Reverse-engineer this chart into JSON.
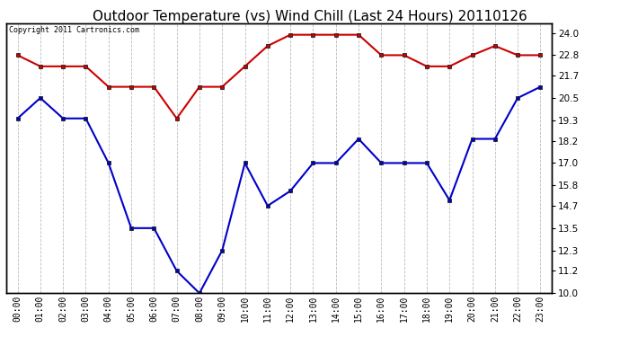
{
  "title": "Outdoor Temperature (vs) Wind Chill (Last 24 Hours) 20110126",
  "copyright_text": "Copyright 2011 Cartronics.com",
  "hours": [
    "00:00",
    "01:00",
    "02:00",
    "03:00",
    "04:00",
    "05:00",
    "06:00",
    "07:00",
    "08:00",
    "09:00",
    "10:00",
    "11:00",
    "12:00",
    "13:00",
    "14:00",
    "15:00",
    "16:00",
    "17:00",
    "18:00",
    "19:00",
    "20:00",
    "21:00",
    "22:00",
    "23:00"
  ],
  "temp": [
    22.8,
    22.2,
    22.2,
    22.2,
    21.1,
    21.1,
    21.1,
    19.4,
    21.1,
    21.1,
    22.2,
    23.3,
    23.9,
    23.9,
    23.9,
    23.9,
    22.8,
    22.8,
    22.2,
    22.2,
    22.8,
    23.3,
    22.8,
    22.8
  ],
  "wind_chill": [
    19.4,
    20.5,
    19.4,
    19.4,
    17.0,
    13.5,
    13.5,
    11.2,
    10.0,
    12.3,
    17.0,
    14.7,
    15.5,
    17.0,
    17.0,
    18.3,
    17.0,
    17.0,
    17.0,
    15.0,
    18.3,
    18.3,
    20.5,
    21.1
  ],
  "ylim": [
    10.0,
    24.5
  ],
  "yticks_right": [
    10.0,
    11.2,
    12.3,
    13.5,
    14.7,
    15.8,
    17.0,
    18.2,
    19.3,
    20.5,
    21.7,
    22.8,
    24.0
  ],
  "temp_color": "#cc0000",
  "wind_chill_color": "#0000cc",
  "bg_color": "#ffffff",
  "grid_color": "#bbbbbb",
  "title_fontsize": 11,
  "marker": "s",
  "marker_size": 3.5,
  "line_width": 1.5
}
